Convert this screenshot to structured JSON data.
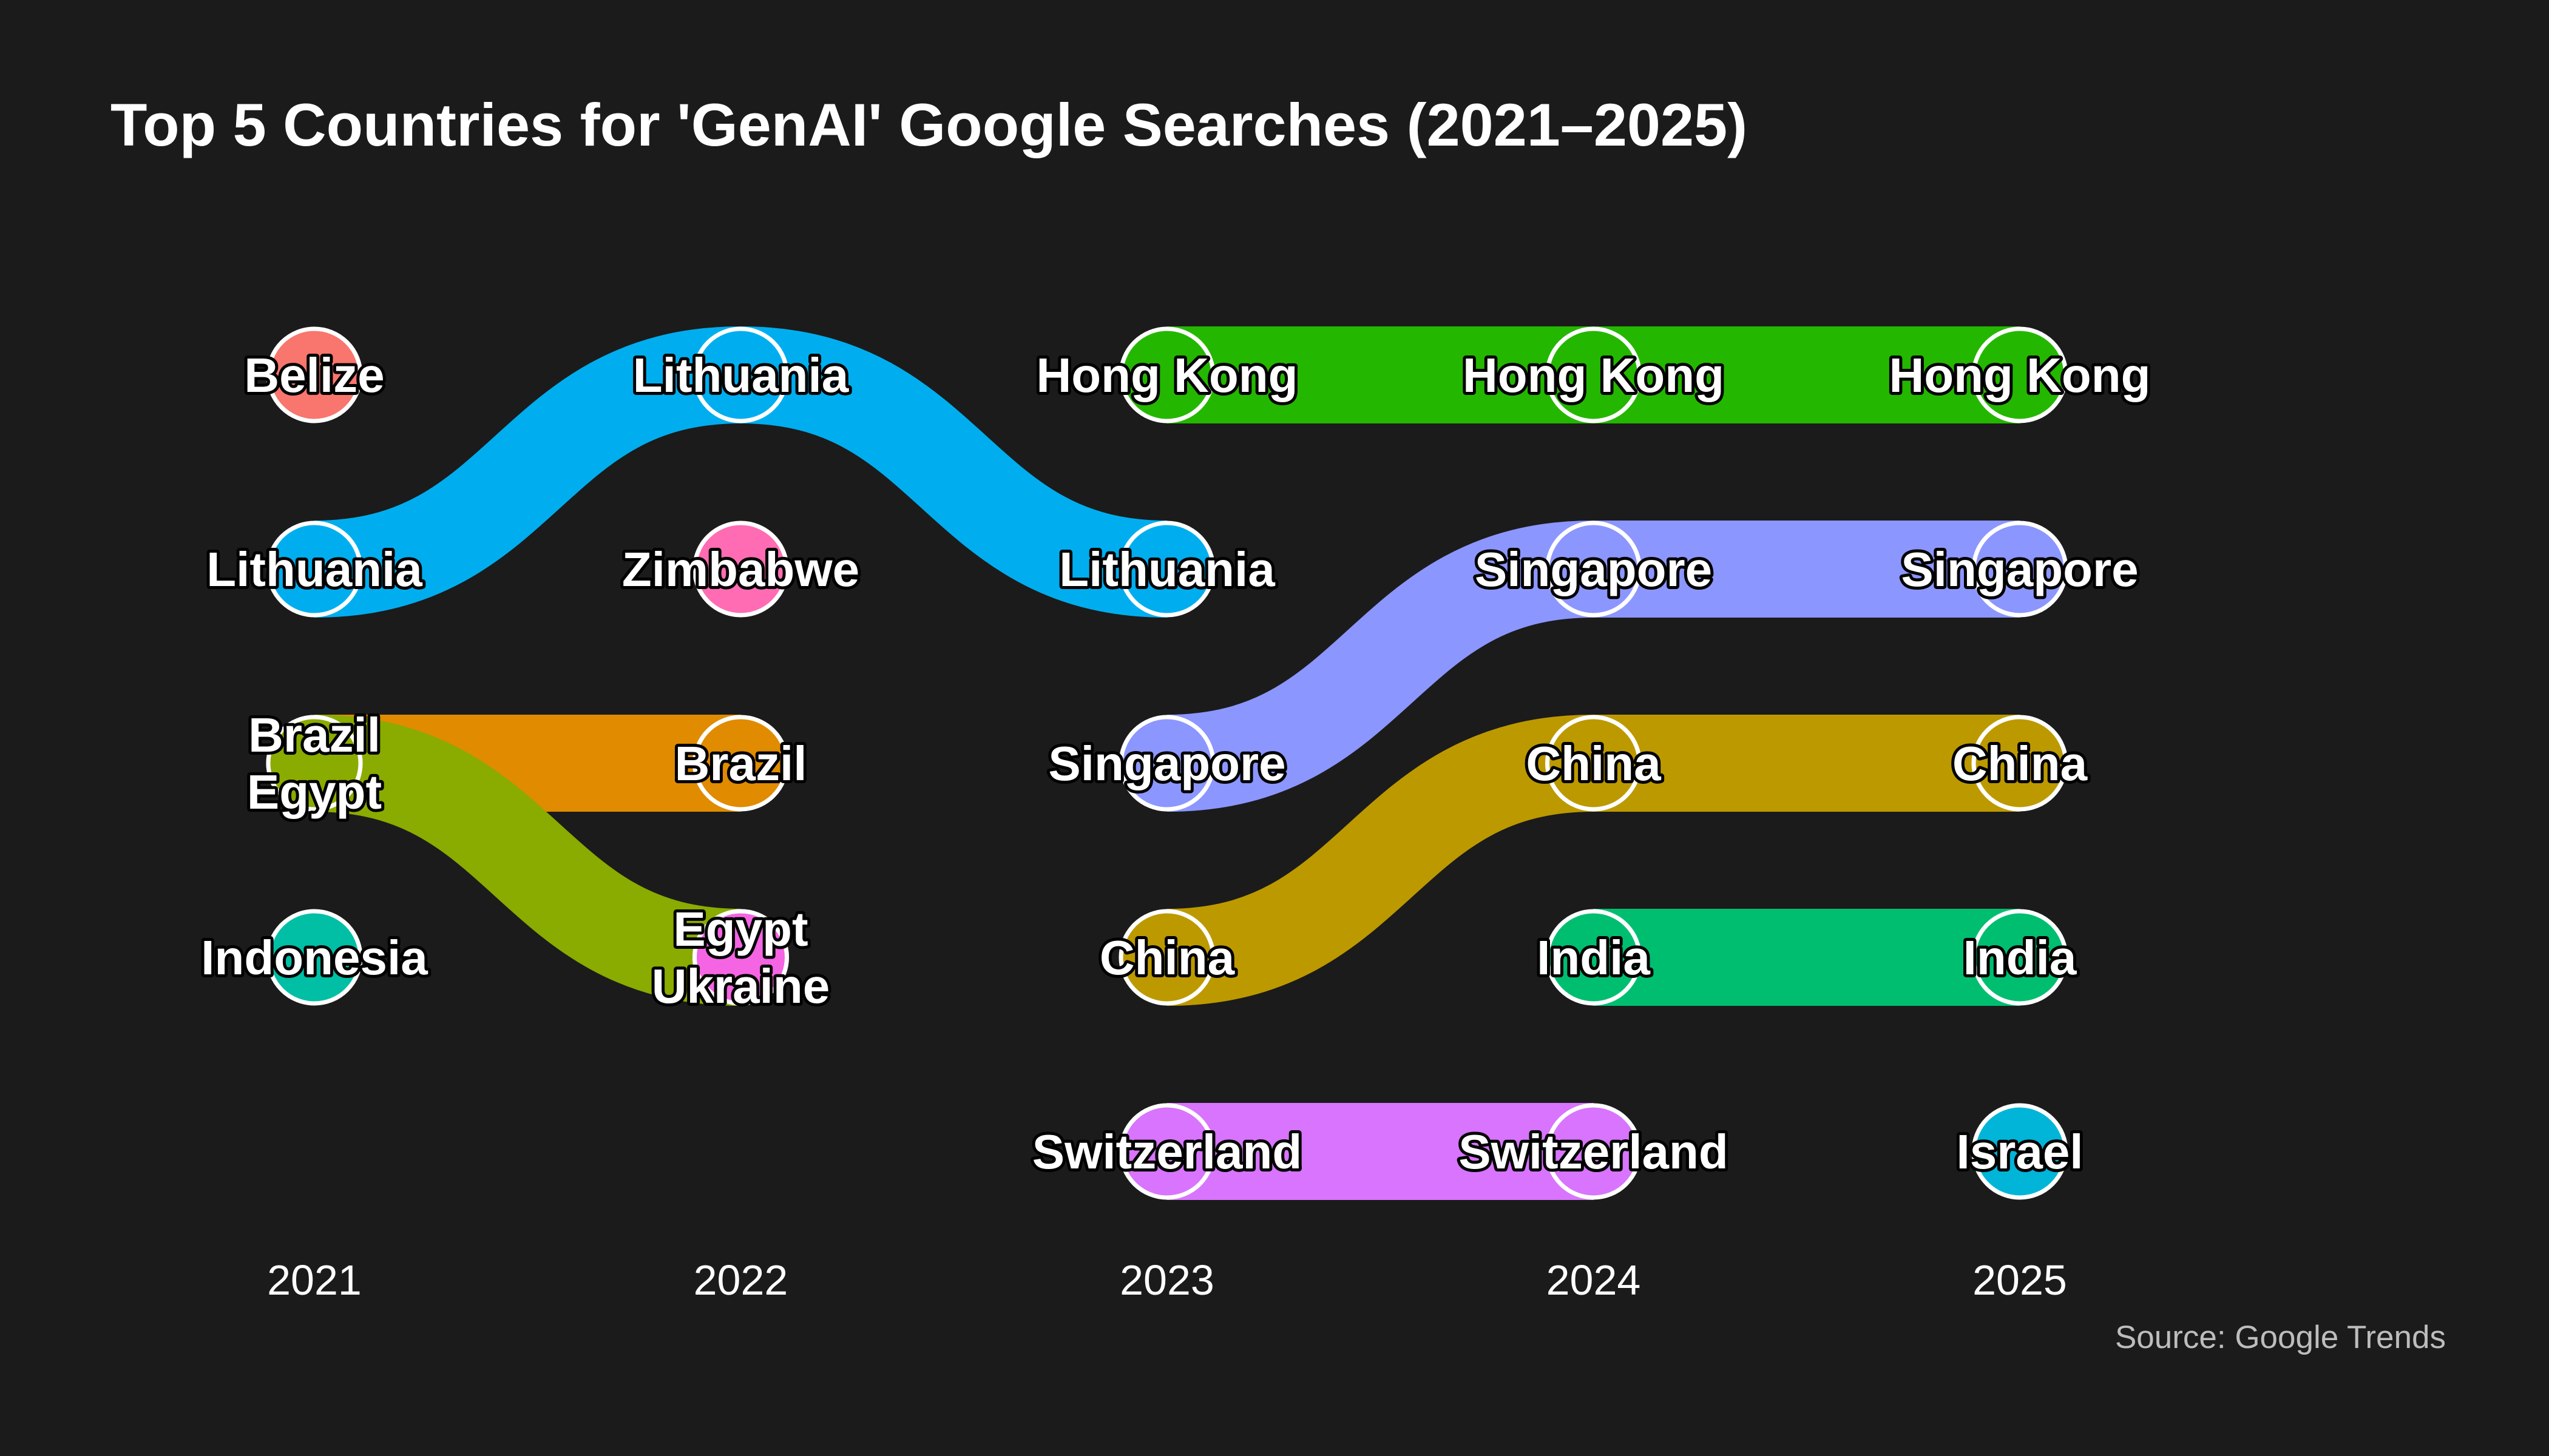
{
  "chart_data": {
    "type": "bump",
    "title": "Top 5 Countries for 'GenAI' Google Searches (2021–2025)",
    "source": "Source: Google Trends",
    "years": [
      "2021",
      "2022",
      "2023",
      "2024",
      "2025"
    ],
    "rankings": {
      "2021": [
        [
          "Belize"
        ],
        [
          "Lithuania"
        ],
        [
          "Brazil",
          "Egypt"
        ],
        [
          "Indonesia"
        ]
      ],
      "2022": [
        [
          "Lithuania"
        ],
        [
          "Zimbabwe"
        ],
        [
          "Brazil"
        ],
        [
          "Egypt",
          "Ukraine"
        ]
      ],
      "2023": [
        [
          "Hong Kong"
        ],
        [
          "Lithuania"
        ],
        [
          "Singapore"
        ],
        [
          "China"
        ],
        [
          "Switzerland"
        ]
      ],
      "2024": [
        [
          "Hong Kong"
        ],
        [
          "Singapore"
        ],
        [
          "China"
        ],
        [
          "India"
        ],
        [
          "Switzerland"
        ]
      ],
      "2025": [
        [
          "Hong Kong"
        ],
        [
          "Singapore"
        ],
        [
          "China"
        ],
        [
          "India"
        ],
        [
          "Israel"
        ]
      ]
    },
    "colors": {
      "Belize": "#f8766d",
      "Lithuania": "#00aeef",
      "Brazil": "#e08b00",
      "Egypt": "#8aab00",
      "Indonesia": "#00bfa5",
      "Zimbabwe": "#ff6cb3",
      "Ukraine": "#f564e3",
      "Hong Kong": "#24b700",
      "Singapore": "#8c96ff",
      "China": "#bd9900",
      "Switzerland": "#d874fd",
      "India": "#00be70",
      "Israel": "#00b5d8"
    },
    "grid": false,
    "legend": "none"
  }
}
